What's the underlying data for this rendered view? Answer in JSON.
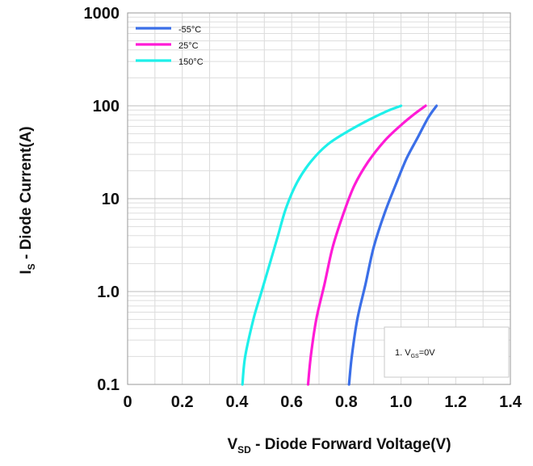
{
  "chart_data": {
    "type": "line",
    "xlabel": {
      "main": "V",
      "sub": "SD",
      "rest": " - Diode Forward Voltage(V)"
    },
    "ylabel": {
      "main": "I",
      "sub": "S",
      "rest": " - Diode Current(A)"
    },
    "xlim": [
      0,
      1.4
    ],
    "ylim": [
      0.1,
      1000
    ],
    "yscale": "log",
    "xticks": [
      "0",
      "0.2",
      "0.4",
      "0.6",
      "0.8",
      "1.0",
      "1.2",
      "1.4"
    ],
    "yticks": [
      "0.1",
      "1.0",
      "10",
      "100",
      "1000"
    ],
    "grid": true,
    "legend_position": "top-left",
    "annotation": {
      "prefix": "1. V",
      "sub": "GS",
      "suffix": "=0V"
    },
    "series": [
      {
        "name": "-55°C",
        "color": "#3b6fe8",
        "x": [
          0.81,
          0.82,
          0.84,
          0.87,
          0.9,
          0.94,
          0.98,
          1.02,
          1.06,
          1.1,
          1.13
        ],
        "y": [
          0.1,
          0.2,
          0.5,
          1.2,
          3,
          7,
          14,
          27,
          45,
          75,
          100
        ]
      },
      {
        "name": "25°C",
        "color": "#ff1bd6",
        "x": [
          0.66,
          0.67,
          0.69,
          0.72,
          0.75,
          0.79,
          0.83,
          0.88,
          0.94,
          1.0,
          1.05,
          1.09
        ],
        "y": [
          0.1,
          0.2,
          0.5,
          1.2,
          3,
          7,
          14,
          25,
          42,
          62,
          82,
          100
        ]
      },
      {
        "name": "150°C",
        "color": "#1ef0ea",
        "x": [
          0.42,
          0.43,
          0.46,
          0.49,
          0.52,
          0.55,
          0.58,
          0.62,
          0.67,
          0.73,
          0.8,
          0.88,
          0.95,
          1.0
        ],
        "y": [
          0.1,
          0.2,
          0.5,
          1.0,
          2,
          4,
          8,
          15,
          25,
          38,
          52,
          70,
          88,
          100
        ]
      }
    ]
  }
}
